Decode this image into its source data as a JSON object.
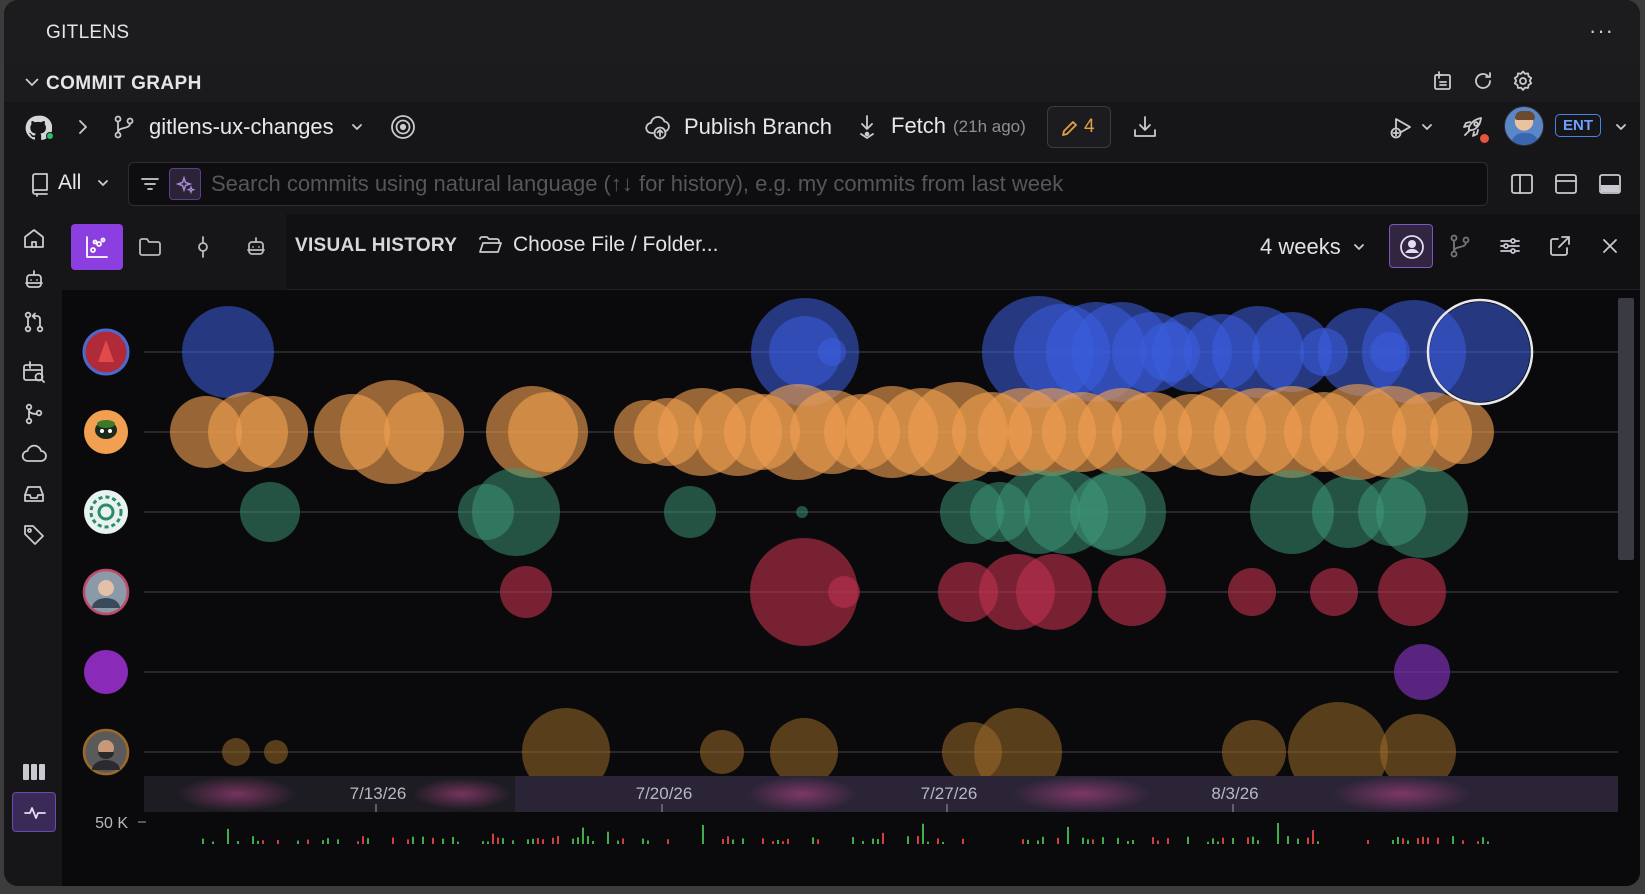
{
  "app": {
    "title": "GITLENS",
    "section_title": "COMMIT GRAPH"
  },
  "toolbar": {
    "branch_name": "gitlens-ux-changes",
    "publish_label": "Publish Branch",
    "fetch_label": "Fetch",
    "fetch_age": "(21h ago)",
    "changes_count": "4",
    "plan_badge": "ENT"
  },
  "filter": {
    "scope_label": "All",
    "search_placeholder": "Search commits using natural language (↑↓ for history), e.g. my commits from last week",
    "search_value": ""
  },
  "visual_history": {
    "title": "VISUAL HISTORY",
    "choose_file_label": "Choose File / Folder...",
    "period_label": "4 weeks",
    "date_labels": [
      "7/13/26",
      "7/20/26",
      "7/27/26",
      "8/3/26"
    ],
    "volume_label": "50 K"
  },
  "colors": {
    "author_blue": "#3c5fe0",
    "author_orange": "#f0a050",
    "author_teal": "#3d9a7a",
    "author_red": "#c0304f",
    "author_purple": "#7a2fb0",
    "author_bronze": "#9a6a2a",
    "accent": "#8b3fe0"
  }
}
